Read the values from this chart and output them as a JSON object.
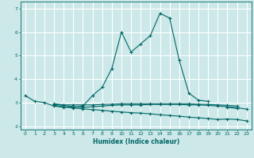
{
  "xlabel": "Humidex (Indice chaleur)",
  "bg_color": "#cce8e8",
  "grid_color": "#ffffff",
  "line_color": "#006666",
  "x_values": [
    0,
    1,
    2,
    3,
    4,
    5,
    6,
    7,
    8,
    9,
    10,
    11,
    12,
    13,
    14,
    15,
    16,
    17,
    18,
    19,
    20,
    21,
    22,
    23
  ],
  "line1": [
    3.3,
    3.05,
    3.0,
    2.85,
    2.8,
    2.8,
    2.85,
    3.3,
    3.65,
    4.45,
    6.0,
    5.15,
    5.5,
    5.85,
    6.8,
    6.6,
    4.8,
    3.4,
    3.1,
    3.05,
    null,
    2.8,
    2.75,
    null
  ],
  "line2": [
    null,
    null,
    null,
    2.92,
    2.88,
    2.82,
    2.8,
    2.82,
    2.85,
    2.88,
    2.9,
    2.9,
    2.9,
    2.92,
    2.92,
    2.92,
    2.92,
    2.9,
    2.9,
    2.88,
    2.85,
    2.82,
    2.78,
    2.72
  ],
  "line3": [
    null,
    null,
    null,
    2.88,
    2.82,
    2.77,
    2.73,
    2.7,
    2.67,
    2.63,
    2.6,
    2.57,
    2.55,
    2.52,
    2.48,
    2.45,
    2.42,
    2.38,
    2.35,
    2.32,
    2.28,
    2.3,
    2.28,
    2.22
  ],
  "line4": [
    null,
    null,
    null,
    2.95,
    2.9,
    2.9,
    2.9,
    2.9,
    2.92,
    2.93,
    2.95,
    2.95,
    2.95,
    2.95,
    2.95,
    2.95,
    2.95,
    2.95,
    2.93,
    2.92,
    2.9,
    2.88,
    2.85,
    null
  ],
  "ylim": [
    1.85,
    7.3
  ],
  "xlim": [
    -0.5,
    23.5
  ],
  "yticks": [
    2,
    3,
    4,
    5,
    6,
    7
  ],
  "xticks": [
    0,
    1,
    2,
    3,
    4,
    5,
    6,
    7,
    8,
    9,
    10,
    11,
    12,
    13,
    14,
    15,
    16,
    17,
    18,
    19,
    20,
    21,
    22,
    23
  ]
}
